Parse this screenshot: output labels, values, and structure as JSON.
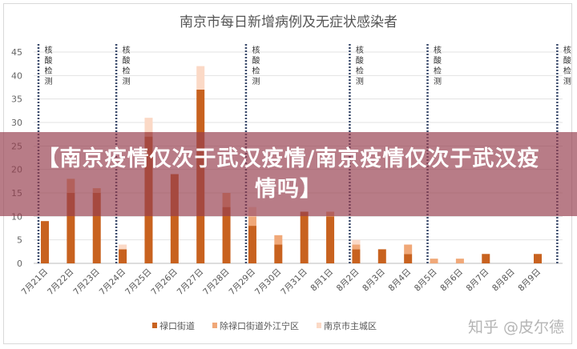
{
  "banner": {
    "text": "【南京疫情仅次于武汉疫情/南京疫情仅次于武汉疫情吗】"
  },
  "watermark": "知乎 @皮尔德",
  "chart_data": {
    "type": "bar",
    "stacked": true,
    "title": "南京市每日新增病例及无症状感染者",
    "xlabel": "",
    "ylabel": "",
    "ylim": [
      0,
      45
    ],
    "yticks": [
      0,
      5,
      10,
      15,
      20,
      25,
      30,
      35,
      40,
      45
    ],
    "grid": true,
    "legend_position": "bottom",
    "categories": [
      "7月21日",
      "7月22日",
      "7月23日",
      "7月24日",
      "7月25日",
      "7月26日",
      "7月27日",
      "7月28日",
      "7月29日",
      "7月30日",
      "7月31日",
      "8月1日",
      "8月2日",
      "8月3日",
      "8月4日",
      "8月5日",
      "8月6日",
      "8月7日",
      "8月8日",
      "8月9日"
    ],
    "series": [
      {
        "name": "禄口街道",
        "color": "#c8621f",
        "values": [
          9,
          15,
          15,
          3,
          27,
          19,
          37,
          12,
          8,
          4,
          11,
          10,
          3,
          3,
          2,
          0,
          0,
          2,
          0,
          2
        ]
      },
      {
        "name": "除禄口街道外江宁区",
        "color": "#f0a878",
        "values": [
          0,
          3,
          1,
          0,
          1,
          0,
          0,
          3,
          2,
          2,
          0,
          1,
          1,
          0,
          2,
          1,
          1,
          0,
          0,
          0
        ]
      },
      {
        "name": "南京市主城区",
        "color": "#fbd9c6",
        "values": [
          0,
          0,
          0,
          1,
          3,
          0,
          5,
          0,
          2,
          0,
          0,
          0,
          1,
          0,
          0,
          0,
          0,
          0,
          0,
          0
        ]
      }
    ],
    "annotations": {
      "label": "核酸检测",
      "before_category_index": [
        0,
        3,
        8,
        12,
        15,
        20
      ],
      "color": "#3a4a6b"
    }
  }
}
